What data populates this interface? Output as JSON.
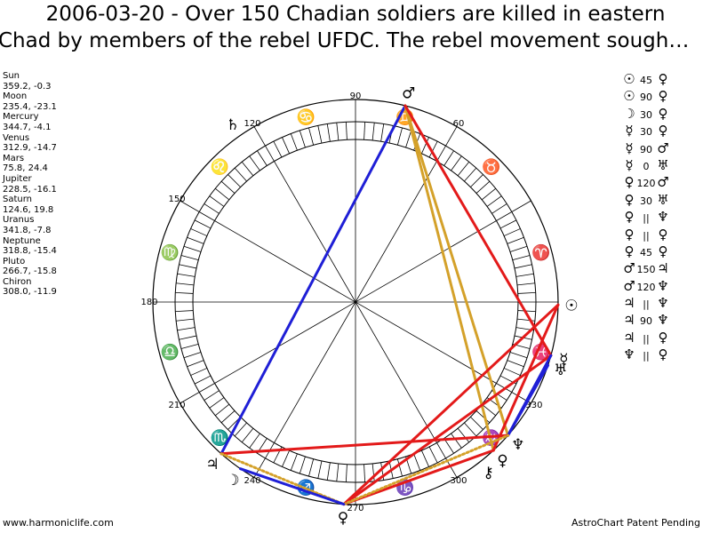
{
  "title": {
    "line1": "2006-03-20 - Over 150 Chadian soldiers are killed in eastern",
    "line2": "Chad by members of the rebel UFDC. The rebel movement sough…"
  },
  "planets": [
    {
      "name": "Sun",
      "value": "359.2, -0.3"
    },
    {
      "name": "Moon",
      "value": "235.4, -23.1"
    },
    {
      "name": "Mercury",
      "value": "344.7, -4.1"
    },
    {
      "name": "Venus",
      "value": "312.9, -14.7"
    },
    {
      "name": "Mars",
      "value": "75.8, 24.4"
    },
    {
      "name": "Jupiter",
      "value": "228.5, -16.1"
    },
    {
      "name": "Saturn",
      "value": "124.6, 19.8"
    },
    {
      "name": "Uranus",
      "value": "341.8, -7.8"
    },
    {
      "name": "Neptune",
      "value": "318.8, -15.4"
    },
    {
      "name": "Pluto",
      "value": "266.7, -15.8"
    },
    {
      "name": "Chiron",
      "value": "308.0, -11.9"
    }
  ],
  "aspects": [
    {
      "p1": "☉",
      "angle": "45",
      "p2": "♀"
    },
    {
      "p1": "☉",
      "angle": "90",
      "p2": "♀"
    },
    {
      "p1": "☽",
      "angle": "30",
      "p2": "♀"
    },
    {
      "p1": "☿",
      "angle": "30",
      "p2": "♀"
    },
    {
      "p1": "☿",
      "angle": "90",
      "p2": "♂"
    },
    {
      "p1": "☿",
      "angle": "0",
      "p2": "♅"
    },
    {
      "p1": "♀",
      "angle": "120",
      "p2": "♂"
    },
    {
      "p1": "♀",
      "angle": "30",
      "p2": "♅"
    },
    {
      "p1": "♀",
      "angle": "||",
      "p2": "♆"
    },
    {
      "p1": "♀",
      "angle": "||",
      "p2": "♀"
    },
    {
      "p1": "♀",
      "angle": "45",
      "p2": "♀"
    },
    {
      "p1": "♂",
      "angle": "150",
      "p2": "♃"
    },
    {
      "p1": "♂",
      "angle": "120",
      "p2": "♆"
    },
    {
      "p1": "♃",
      "angle": "||",
      "p2": "♆"
    },
    {
      "p1": "♃",
      "angle": "90",
      "p2": "♆"
    },
    {
      "p1": "♃",
      "angle": "||",
      "p2": "♀"
    },
    {
      "p1": "♆",
      "angle": "||",
      "p2": "♀"
    }
  ],
  "footer": {
    "left": "www.harmoniclife.com",
    "right": "AstroChart Patent Pending"
  },
  "chart_data": {
    "type": "astrological-wheel",
    "degree_labels": [
      "90",
      "60",
      "120",
      "150",
      "180",
      "210",
      "240",
      "270",
      "300",
      "330"
    ],
    "signs": [
      {
        "glyph": "♈",
        "longitude": 15
      },
      {
        "glyph": "♉",
        "longitude": 45
      },
      {
        "glyph": "♊",
        "longitude": 75
      },
      {
        "glyph": "♋",
        "longitude": 105
      },
      {
        "glyph": "♌",
        "longitude": 135
      },
      {
        "glyph": "♍",
        "longitude": 165
      },
      {
        "glyph": "♎",
        "longitude": 195
      },
      {
        "glyph": "♏",
        "longitude": 225
      },
      {
        "glyph": "♐",
        "longitude": 255
      },
      {
        "glyph": "♑",
        "longitude": 285
      },
      {
        "glyph": "♒",
        "longitude": 315
      },
      {
        "glyph": "♓",
        "longitude": 345
      }
    ],
    "bodies": [
      {
        "name": "Sun",
        "glyph": "☉",
        "longitude": 359.2
      },
      {
        "name": "Moon",
        "glyph": "☽",
        "longitude": 235.4
      },
      {
        "name": "Mercury",
        "glyph": "☿",
        "longitude": 344.7
      },
      {
        "name": "Venus",
        "glyph": "♀",
        "longitude": 312.9
      },
      {
        "name": "Mars",
        "glyph": "♂",
        "longitude": 75.8
      },
      {
        "name": "Jupiter",
        "glyph": "♃",
        "longitude": 228.5
      },
      {
        "name": "Saturn",
        "glyph": "♄",
        "longitude": 124.6
      },
      {
        "name": "Uranus",
        "glyph": "♅",
        "longitude": 341.8
      },
      {
        "name": "Neptune",
        "glyph": "♆",
        "longitude": 318.8
      },
      {
        "name": "Pluto",
        "glyph": "♀",
        "longitude": 266.7
      },
      {
        "name": "Chiron",
        "glyph": "⚷",
        "longitude": 308.0
      }
    ],
    "aspect_lines": [
      {
        "from": 228.5,
        "to": 75.8,
        "color": "#1f1fd6",
        "style": "solid"
      },
      {
        "from": 75.8,
        "to": 318.8,
        "color": "#d4a12a",
        "style": "solid"
      },
      {
        "from": 75.8,
        "to": 312.9,
        "color": "#d4a12a",
        "style": "solid"
      },
      {
        "from": 75.8,
        "to": 344.7,
        "color": "#e31a1a",
        "style": "solid"
      },
      {
        "from": 359.2,
        "to": 312.9,
        "color": "#e31a1a",
        "style": "solid"
      },
      {
        "from": 359.2,
        "to": 266.7,
        "color": "#e31a1a",
        "style": "solid"
      },
      {
        "from": 344.7,
        "to": 266.7,
        "color": "#e31a1a",
        "style": "solid"
      },
      {
        "from": 341.8,
        "to": 318.8,
        "color": "#1f1fd6",
        "style": "solid"
      },
      {
        "from": 344.7,
        "to": 318.8,
        "color": "#1f1fd6",
        "style": "solid"
      },
      {
        "from": 228.5,
        "to": 318.8,
        "color": "#e31a1a",
        "style": "solid"
      },
      {
        "from": 266.7,
        "to": 312.9,
        "color": "#e31a1a",
        "style": "solid"
      },
      {
        "from": 228.5,
        "to": 266.7,
        "color": "#d4a12a",
        "style": "dotted"
      },
      {
        "from": 266.7,
        "to": 318.8,
        "color": "#d4a12a",
        "style": "dotted"
      },
      {
        "from": 235.4,
        "to": 266.7,
        "color": "#1f1fd6",
        "style": "solid"
      }
    ]
  }
}
